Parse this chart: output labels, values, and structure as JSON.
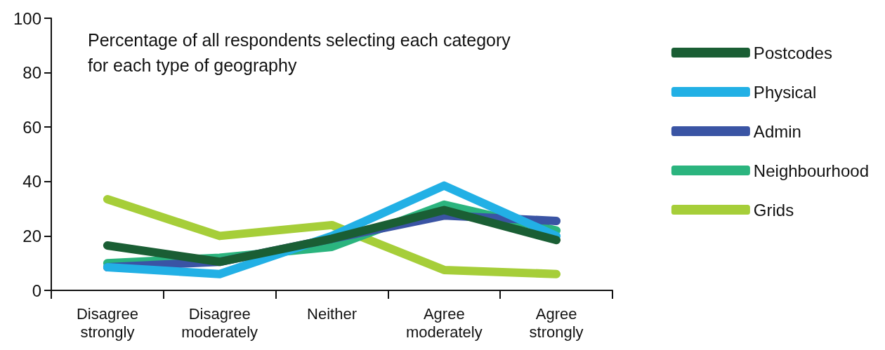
{
  "chart_data": {
    "type": "line",
    "title": "Percentage of all respondents selecting each category for each type of geography",
    "categories": [
      "Disagree\nstrongly",
      "Disagree\nmoderately",
      "Neither",
      "Agree\nmoderately",
      "Agree\nstrongly"
    ],
    "series": [
      {
        "name": "Postcodes",
        "color": "#1a5e34",
        "values": [
          16.5,
          10.5,
          19,
          29.5,
          18.5
        ]
      },
      {
        "name": "Physical",
        "color": "#22b0e5",
        "values": [
          8.5,
          6,
          20,
          38.5,
          20
        ]
      },
      {
        "name": "Admin",
        "color": "#3a54a4",
        "values": [
          8.5,
          10.5,
          19,
          27.5,
          25.5
        ]
      },
      {
        "name": "Neighbourhood",
        "color": "#2bb47e",
        "values": [
          10,
          12,
          16,
          31.5,
          22
        ]
      },
      {
        "name": "Grids",
        "color": "#a6ce39",
        "values": [
          33.5,
          20,
          24,
          7.5,
          6
        ]
      }
    ],
    "ylim": [
      0,
      100
    ],
    "yticks": [
      0,
      20,
      40,
      60,
      80,
      100
    ],
    "grid": false,
    "legend": "right",
    "line_style": "solid"
  }
}
